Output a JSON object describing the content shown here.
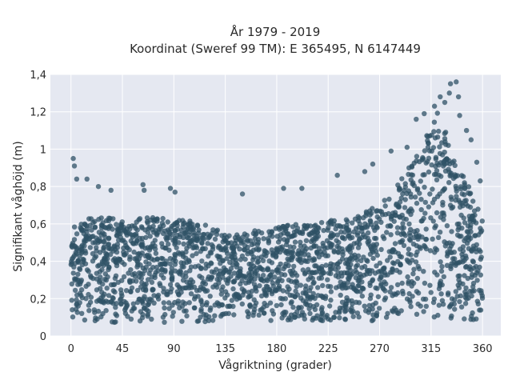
{
  "chart_data": {
    "type": "scatter",
    "title_line1": "År 1979 - 2019",
    "title_line2": "Koordinat (Sweref 99 TM): E 365495, N 6147449",
    "xlabel": "Vågriktning (grader)",
    "ylabel": "Signifikant våghöjd (m)",
    "xlim": [
      -18,
      376
    ],
    "ylim": [
      0,
      1.4
    ],
    "x_ticks": [
      0,
      45,
      90,
      135,
      180,
      225,
      270,
      315,
      360
    ],
    "x_tick_labels": [
      "0",
      "45",
      "90",
      "135",
      "180",
      "225",
      "270",
      "315",
      "360"
    ],
    "y_ticks": [
      0,
      0.2,
      0.4,
      0.6,
      0.8,
      1,
      1.2,
      1.4
    ],
    "y_tick_labels": [
      "0",
      "0,2",
      "0,4",
      "0,6",
      "0,8",
      "1",
      "1,2",
      "1,4"
    ],
    "grid": true,
    "marker_color": "#2f5166",
    "x_range": [
      0,
      360
    ],
    "envelope": {
      "x": [
        0,
        5,
        15,
        30,
        45,
        60,
        75,
        90,
        105,
        120,
        135,
        150,
        165,
        180,
        195,
        210,
        225,
        240,
        255,
        270,
        285,
        300,
        310,
        315,
        320,
        325,
        330,
        340,
        350,
        360
      ],
      "y_max": [
        0.64,
        0.64,
        0.63,
        0.65,
        0.62,
        0.63,
        0.64,
        0.62,
        0.62,
        0.6,
        0.55,
        0.55,
        0.57,
        0.58,
        0.6,
        0.6,
        0.62,
        0.62,
        0.66,
        0.7,
        0.8,
        0.95,
        1.05,
        1.15,
        1.2,
        1.15,
        1.05,
        0.9,
        0.78,
        0.64
      ],
      "y_min": [
        0.08,
        0.08,
        0.08,
        0.07,
        0.07,
        0.07,
        0.07,
        0.07,
        0.07,
        0.07,
        0.08,
        0.08,
        0.08,
        0.08,
        0.08,
        0.08,
        0.08,
        0.08,
        0.08,
        0.08,
        0.08,
        0.08,
        0.08,
        0.08,
        0.08,
        0.08,
        0.08,
        0.08,
        0.08,
        0.08
      ]
    },
    "outliers": [
      {
        "x": 2,
        "y": 0.95
      },
      {
        "x": 3,
        "y": 0.91
      },
      {
        "x": 5,
        "y": 0.84
      },
      {
        "x": 14,
        "y": 0.84
      },
      {
        "x": 24,
        "y": 0.8
      },
      {
        "x": 35,
        "y": 0.78
      },
      {
        "x": 63,
        "y": 0.81
      },
      {
        "x": 64,
        "y": 0.78
      },
      {
        "x": 87,
        "y": 0.79
      },
      {
        "x": 91,
        "y": 0.77
      },
      {
        "x": 150,
        "y": 0.76
      },
      {
        "x": 186,
        "y": 0.79
      },
      {
        "x": 202,
        "y": 0.79
      },
      {
        "x": 233,
        "y": 0.86
      },
      {
        "x": 257,
        "y": 0.88
      },
      {
        "x": 264,
        "y": 0.92
      },
      {
        "x": 280,
        "y": 0.99
      },
      {
        "x": 294,
        "y": 1.01
      },
      {
        "x": 302,
        "y": 1.16
      },
      {
        "x": 309,
        "y": 1.19
      },
      {
        "x": 318,
        "y": 1.23
      },
      {
        "x": 323,
        "y": 1.28
      },
      {
        "x": 327,
        "y": 1.25
      },
      {
        "x": 332,
        "y": 1.35
      },
      {
        "x": 337,
        "y": 1.36
      },
      {
        "x": 339,
        "y": 1.28
      },
      {
        "x": 331,
        "y": 1.3
      },
      {
        "x": 346,
        "y": 1.1
      },
      {
        "x": 350,
        "y": 1.05
      },
      {
        "x": 355,
        "y": 0.93
      },
      {
        "x": 358,
        "y": 0.83
      },
      {
        "x": 340,
        "y": 1.18
      }
    ],
    "point_count": 2200
  }
}
